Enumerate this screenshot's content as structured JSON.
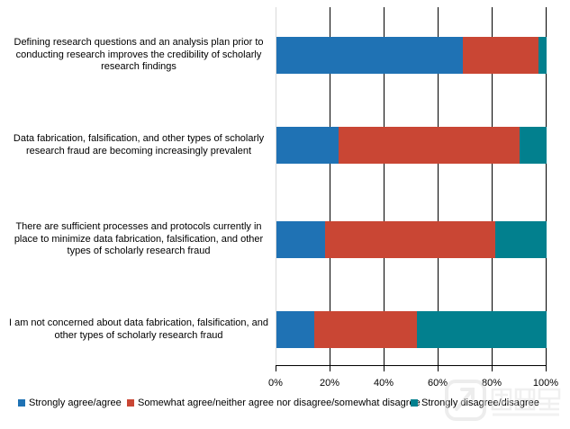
{
  "chart_data": {
    "type": "bar",
    "orientation": "horizontal",
    "stacked": true,
    "title": "",
    "categories": [
      "Defining research questions and an analysis plan prior to conducting research improves the credibility of scholarly research findings",
      "Data fabrication, falsification, and other types of scholarly research fraud are becoming increasingly prevalent",
      "There are sufficient processes and protocols currently in place to minimize data fabrication, falsification, and other types of scholarly research fraud",
      "I am not concerned about data fabrication, falsification, and other types of scholarly research fraud"
    ],
    "series": [
      {
        "name": "Strongly agree/agree",
        "color": "#1F72B4",
        "values": [
          69,
          23,
          18,
          14
        ]
      },
      {
        "name": "Somewhat agree/neither agree nor disagree/somewhat disagree",
        "color": "#C94634",
        "values": [
          28,
          67,
          63,
          38
        ]
      },
      {
        "name": "Strongly disagree/disagree",
        "color": "#02808E",
        "values": [
          3,
          10,
          19,
          48
        ]
      }
    ],
    "x_ticks": [
      "0%",
      "20%",
      "40%",
      "60%",
      "80%",
      "100%"
    ],
    "xlim": [
      0,
      100
    ],
    "grid": true,
    "legend_position": "bottom",
    "axis_line_color": "#D9D9D9",
    "gridline_color": "#000000",
    "text_color": "#000000"
  },
  "watermark": {
    "label": "医咖会"
  }
}
